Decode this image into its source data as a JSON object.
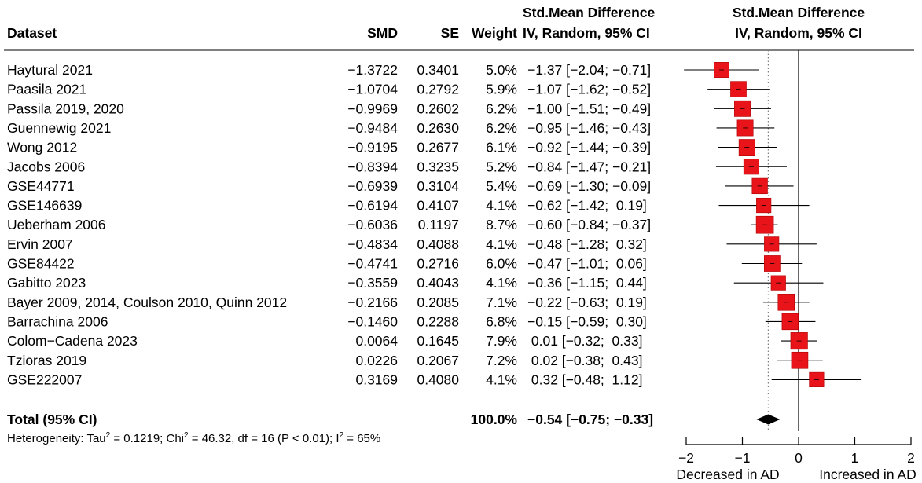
{
  "chart_data": {
    "type": "forest",
    "headers": {
      "dataset": "Dataset",
      "smd": "SMD",
      "se": "SE",
      "weight": "Weight",
      "ci_col_line1": "Std.Mean Difference",
      "ci_col_line2": "IV, Random, 95% CI",
      "plot_line1": "Std.Mean Difference",
      "plot_line2": "IV, Random, 95% CI"
    },
    "studies": [
      {
        "name": "Haytural 2021",
        "smd": "−1.3722",
        "se": "0.3401",
        "weight": "5.0%",
        "ci_text": "−1.37 [−2.04; −0.71]",
        "est": -1.37,
        "lo": -2.04,
        "hi": -0.71,
        "w": 5.0
      },
      {
        "name": "Paasila 2021",
        "smd": "−1.0704",
        "se": "0.2792",
        "weight": "5.9%",
        "ci_text": "−1.07 [−1.62; −0.52]",
        "est": -1.07,
        "lo": -1.62,
        "hi": -0.52,
        "w": 5.9
      },
      {
        "name": "Passila 2019, 2020",
        "smd": "−0.9969",
        "se": "0.2602",
        "weight": "6.2%",
        "ci_text": "−1.00 [−1.51; −0.49]",
        "est": -1.0,
        "lo": -1.51,
        "hi": -0.49,
        "w": 6.2
      },
      {
        "name": "Guennewig 2021",
        "smd": "−0.9484",
        "se": "0.2630",
        "weight": "6.2%",
        "ci_text": "−0.95 [−1.46; −0.43]",
        "est": -0.95,
        "lo": -1.46,
        "hi": -0.43,
        "w": 6.2
      },
      {
        "name": "Wong 2012",
        "smd": "−0.9195",
        "se": "0.2677",
        "weight": "6.1%",
        "ci_text": "−0.92 [−1.44; −0.39]",
        "est": -0.92,
        "lo": -1.44,
        "hi": -0.39,
        "w": 6.1
      },
      {
        "name": "Jacobs 2006",
        "smd": "−0.8394",
        "se": "0.3235",
        "weight": "5.2%",
        "ci_text": "−0.84 [−1.47; −0.21]",
        "est": -0.84,
        "lo": -1.47,
        "hi": -0.21,
        "w": 5.2
      },
      {
        "name": "GSE44771",
        "smd": "−0.6939",
        "se": "0.3104",
        "weight": "5.4%",
        "ci_text": "−0.69 [−1.30; −0.09]",
        "est": -0.69,
        "lo": -1.3,
        "hi": -0.09,
        "w": 5.4
      },
      {
        "name": "GSE146639",
        "smd": "−0.6194",
        "se": "0.4107",
        "weight": "4.1%",
        "ci_text": "−0.62 [−1.42;  0.19]",
        "est": -0.62,
        "lo": -1.42,
        "hi": 0.19,
        "w": 4.1
      },
      {
        "name": "Ueberham 2006",
        "smd": "−0.6036",
        "se": "0.1197",
        "weight": "8.7%",
        "ci_text": "−0.60 [−0.84; −0.37]",
        "est": -0.6,
        "lo": -0.84,
        "hi": -0.37,
        "w": 8.7
      },
      {
        "name": "Ervin 2007",
        "smd": "−0.4834",
        "se": "0.4088",
        "weight": "4.1%",
        "ci_text": "−0.48 [−1.28;  0.32]",
        "est": -0.48,
        "lo": -1.28,
        "hi": 0.32,
        "w": 4.1
      },
      {
        "name": "GSE84422",
        "smd": "−0.4741",
        "se": "0.2716",
        "weight": "6.0%",
        "ci_text": "−0.47 [−1.01;  0.06]",
        "est": -0.47,
        "lo": -1.01,
        "hi": 0.06,
        "w": 6.0
      },
      {
        "name": "Gabitto 2023",
        "smd": "−0.3559",
        "se": "0.4043",
        "weight": "4.1%",
        "ci_text": "−0.36 [−1.15;  0.44]",
        "est": -0.36,
        "lo": -1.15,
        "hi": 0.44,
        "w": 4.1
      },
      {
        "name": "Bayer 2009, 2014, Coulson 2010, Quinn 2012",
        "smd": "−0.2166",
        "se": "0.2085",
        "weight": "7.1%",
        "ci_text": "−0.22 [−0.63;  0.19]",
        "est": -0.22,
        "lo": -0.63,
        "hi": 0.19,
        "w": 7.1
      },
      {
        "name": "Barrachina 2006",
        "smd": "−0.1460",
        "se": "0.2288",
        "weight": "6.8%",
        "ci_text": "−0.15 [−0.59;  0.30]",
        "est": -0.15,
        "lo": -0.59,
        "hi": 0.3,
        "w": 6.8
      },
      {
        "name": "Colom−Cadena 2023",
        "smd": "0.0064",
        "se": "0.1645",
        "weight": "7.9%",
        "ci_text": " 0.01 [−0.32;  0.33]",
        "est": 0.01,
        "lo": -0.32,
        "hi": 0.33,
        "w": 7.9
      },
      {
        "name": "Tzioras 2019",
        "smd": "0.0226",
        "se": "0.2067",
        "weight": "7.2%",
        "ci_text": " 0.02 [−0.38;  0.43]",
        "est": 0.02,
        "lo": -0.38,
        "hi": 0.43,
        "w": 7.2
      },
      {
        "name": "GSE222007",
        "smd": "0.3169",
        "se": "0.4080",
        "weight": "4.1%",
        "ci_text": " 0.32 [−0.48;  1.12]",
        "est": 0.32,
        "lo": -0.48,
        "hi": 1.12,
        "w": 4.1
      }
    ],
    "total": {
      "label": "Total (95% CI)",
      "weight": "100.0%",
      "ci_text": "−0.54 [−0.75; −0.33]",
      "est": -0.54,
      "lo": -0.75,
      "hi": -0.33
    },
    "heterogeneity": {
      "prefix": "Heterogeneity: Tau",
      "tau_sup": "2",
      "tau_value": " = 0.1219; Chi",
      "chi_sup": "2",
      "chi_value": " = 46.32, df = 16 (P < 0.01); I",
      "i_sup": "2",
      "i_value": " = 65%"
    },
    "x_axis": {
      "range": [
        -2,
        2
      ],
      "ticks": [
        -2,
        -1,
        0,
        1,
        2
      ],
      "tick_labels": [
        "−2",
        "−1",
        "0",
        "1",
        "2"
      ],
      "label_left": "Decreased in AD",
      "label_right": "Increased in AD"
    },
    "colors": {
      "box": "#e8141a",
      "box_edge": "#b00000",
      "diamond": "#000000",
      "line": "#000000",
      "ref_dotted": "#7f7f7f"
    }
  }
}
